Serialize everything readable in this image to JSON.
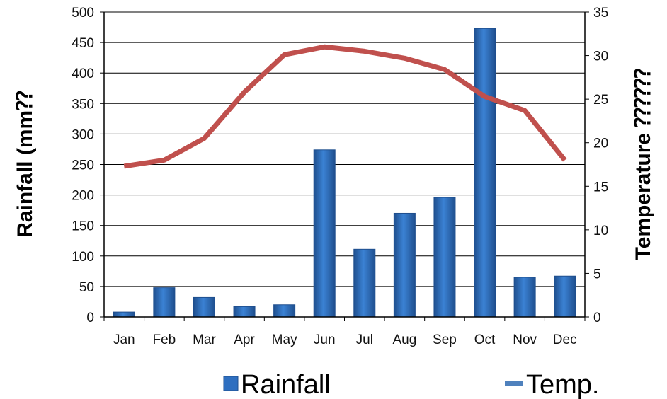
{
  "chart_data": {
    "type": "bar",
    "categories": [
      "Jan",
      "Feb",
      "Mar",
      "Apr",
      "May",
      "Jun",
      "Jul",
      "Aug",
      "Sep",
      "Oct",
      "Nov",
      "Dec"
    ],
    "series": [
      {
        "name": "Rainfall",
        "type": "bar",
        "axis": "left",
        "values": [
          8,
          48,
          32,
          17,
          20,
          274,
          111,
          170,
          196,
          473,
          65,
          67
        ]
      },
      {
        "name": "Temp.",
        "type": "line",
        "axis": "right",
        "values": [
          17.3,
          18.0,
          20.5,
          25.8,
          30.1,
          31.0,
          30.5,
          29.7,
          28.4,
          25.3,
          23.7,
          18.0
        ]
      }
    ],
    "ylabel": "Rainfall (mm⁇",
    "y2label": "Temperature ⁇⁇⁇",
    "ylim": [
      0,
      500
    ],
    "y2lim": [
      0,
      35
    ],
    "yticks": [
      "0",
      "50",
      "100",
      "150",
      "200",
      "250",
      "300",
      "350",
      "400",
      "450",
      "500"
    ],
    "y2ticks": [
      "0",
      "5",
      "10",
      "15",
      "20",
      "25",
      "30",
      "35"
    ],
    "grid": true,
    "legend_position": "bottom",
    "colors": {
      "bar": "#2e6fc0",
      "bar_dark": "#1f4f8e",
      "line": "#c0504d",
      "legend_line": "#4f81bd",
      "grid": "#000000"
    }
  }
}
